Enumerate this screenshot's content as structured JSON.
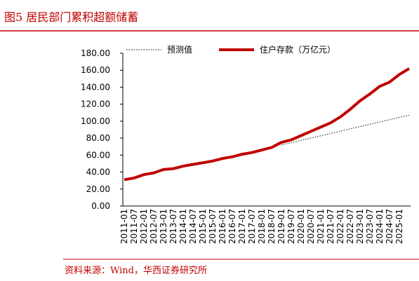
{
  "title": "图5 居民部门累积超额储蓄",
  "source": "资料来源：Wind，华西证券研究所",
  "chart_data": {
    "type": "line",
    "categories": [
      "2011-01",
      "2011-07",
      "2012-01",
      "2012-07",
      "2013-01",
      "2013-07",
      "2014-01",
      "2014-07",
      "2015-01",
      "2015-07",
      "2016-01",
      "2016-07",
      "2017-01",
      "2017-07",
      "2018-01",
      "2018-07",
      "2019-01",
      "2019-07",
      "2020-01",
      "2020-07",
      "2021-01",
      "2021-07",
      "2022-01",
      "2022-07",
      "2023-01",
      "2023-07",
      "2024-01",
      "2024-07",
      "2025-01",
      null
    ],
    "series": [
      {
        "name": "预测值",
        "color": "#333333",
        "style": "dotted",
        "values": [
          null,
          null,
          null,
          null,
          null,
          null,
          null,
          null,
          null,
          null,
          null,
          null,
          null,
          null,
          null,
          null,
          72,
          74.7,
          77.4,
          80.1,
          82.8,
          85.5,
          88.2,
          90.9,
          93.6,
          96.3,
          99,
          101.7,
          104.4,
          107
        ]
      },
      {
        "name": "住户存款（万亿元）",
        "color": "#c00000",
        "style": "solid",
        "values": [
          31,
          33,
          37,
          39,
          43,
          44,
          47,
          49,
          51,
          53,
          56,
          58,
          61,
          63,
          66,
          69,
          75,
          78,
          83,
          88,
          93,
          98,
          105,
          114,
          124,
          132,
          141,
          146,
          155,
          162
        ]
      }
    ],
    "ylim": [
      0,
      180
    ],
    "yticks": [
      {
        "value": 0,
        "label": "0.00"
      },
      {
        "value": 20,
        "label": "20.00"
      },
      {
        "value": 40,
        "label": "40.00"
      },
      {
        "value": 60,
        "label": "60.00"
      },
      {
        "value": 80,
        "label": "80.00"
      },
      {
        "value": 100,
        "label": "100.00"
      },
      {
        "value": 120,
        "label": "120.00"
      },
      {
        "value": 140,
        "label": "140.00"
      },
      {
        "value": 160,
        "label": "160.00"
      },
      {
        "value": 180,
        "label": "180.00"
      }
    ],
    "grid": false,
    "legend": "top"
  }
}
